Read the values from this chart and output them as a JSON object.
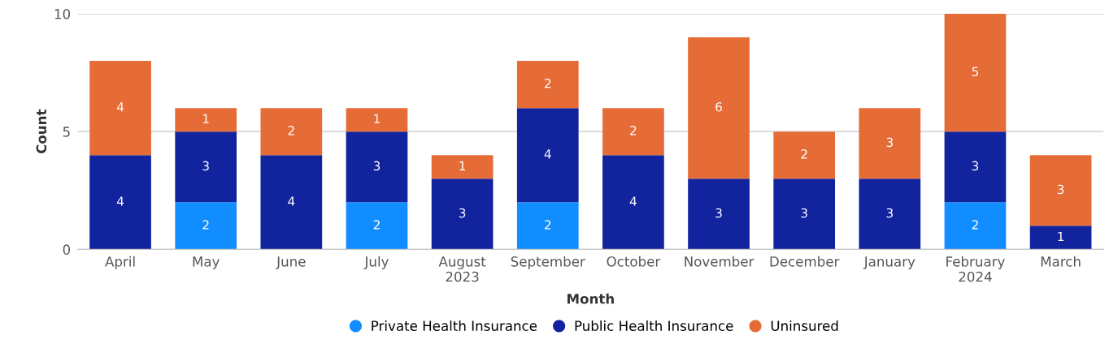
{
  "chart_data": {
    "type": "bar",
    "stacked": true,
    "xlabel": "Month",
    "ylabel": "Count",
    "categories": [
      "April",
      "May",
      "June",
      "July",
      "August\n2023",
      "September",
      "October",
      "November",
      "December",
      "January",
      "February\n2024",
      "March"
    ],
    "series": [
      {
        "name": "Private Health Insurance",
        "color": "#118dff",
        "values": [
          null,
          2,
          null,
          2,
          null,
          2,
          null,
          null,
          null,
          null,
          2,
          null
        ]
      },
      {
        "name": "Public Health Insurance",
        "color": "#12239e",
        "values": [
          4,
          3,
          4,
          3,
          3,
          4,
          4,
          3,
          3,
          3,
          3,
          1
        ]
      },
      {
        "name": "Uninsured",
        "color": "#e66c37",
        "values": [
          4,
          1,
          2,
          1,
          1,
          2,
          2,
          6,
          2,
          3,
          5,
          3
        ]
      }
    ],
    "ylim": [
      0,
      10
    ],
    "yticks": [
      0,
      5,
      10
    ],
    "grid": "y",
    "legend": "bottom",
    "data_labels": true
  }
}
